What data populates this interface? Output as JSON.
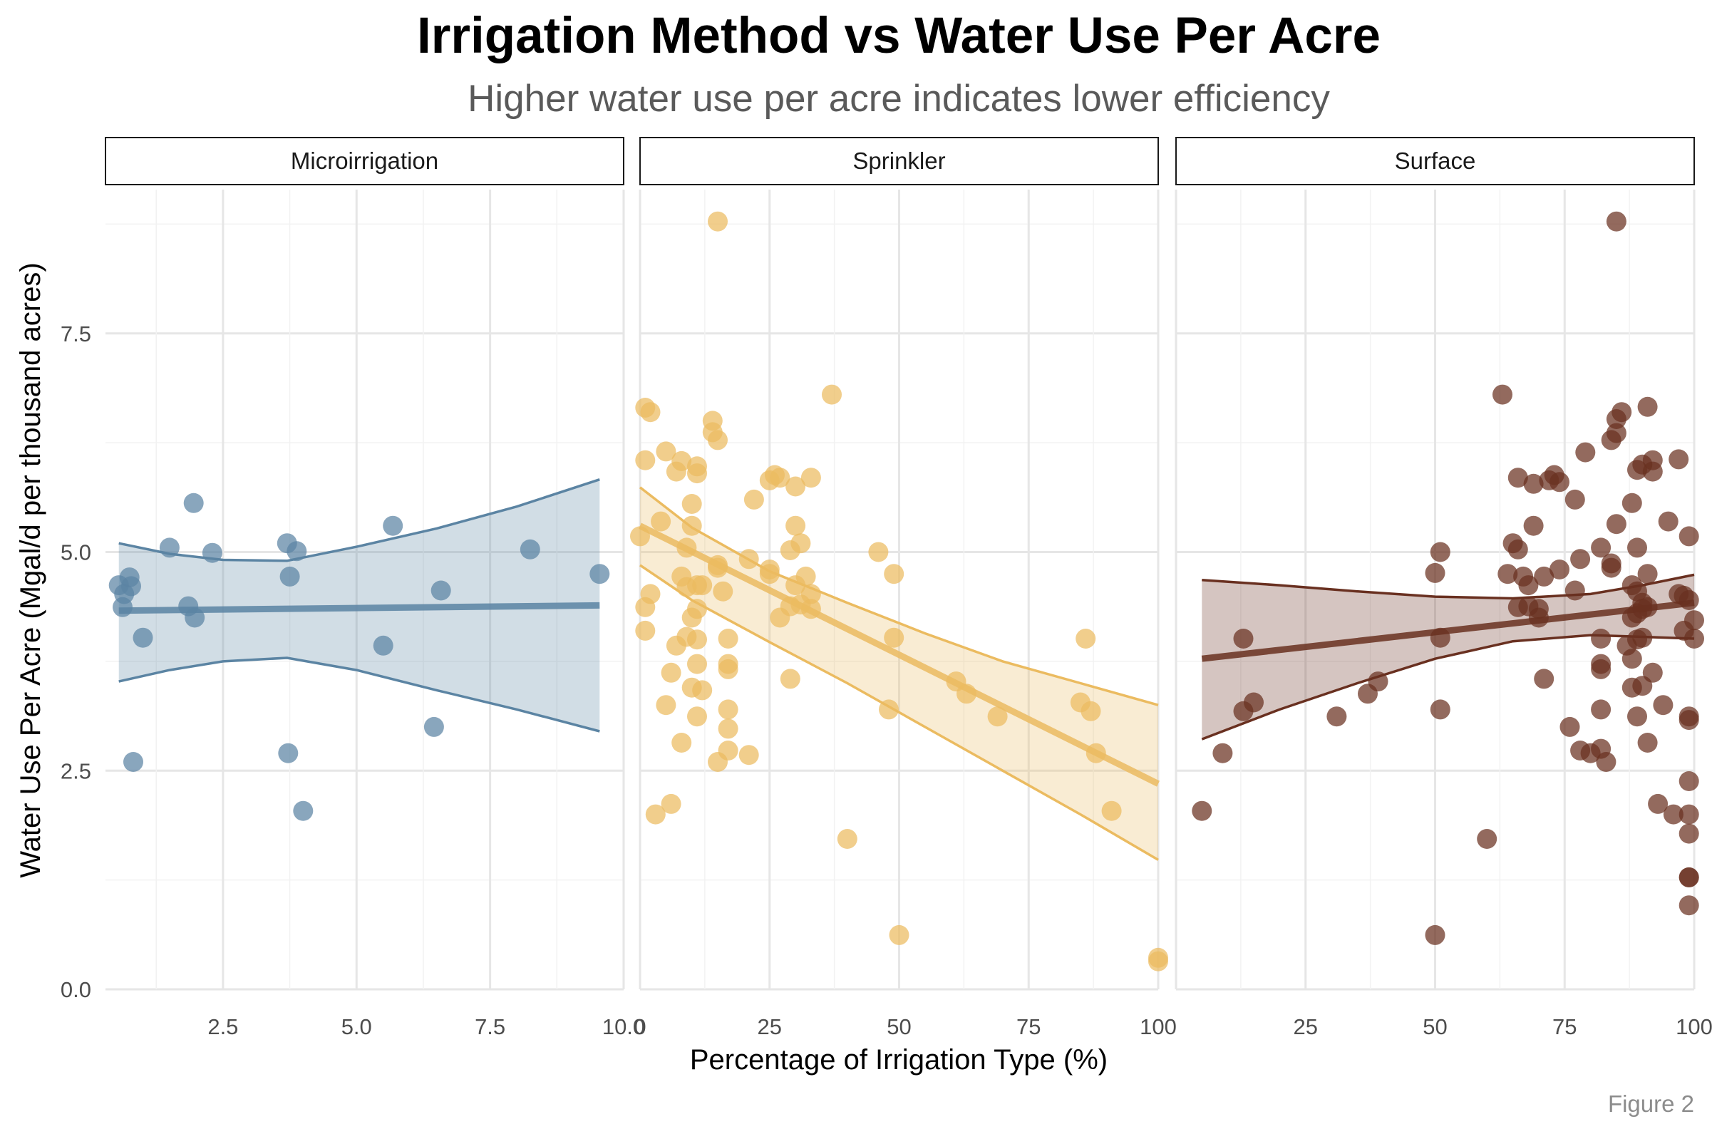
{
  "chart_data": {
    "type": "scatter",
    "title": "Irrigation Method vs Water Use Per Acre",
    "subtitle": "Higher water use per acre indicates lower efficiency",
    "xlabel": "Percentage of Irrigation Type (%)",
    "ylabel": "Water Use Per Acre (Mgal/d per thousand acres)",
    "caption": "Figure 2",
    "ylim": [
      0,
      9.0
    ],
    "y_ticks": [
      "0.0",
      "2.5",
      "5.0",
      "7.5"
    ],
    "y_tick_values": [
      0,
      2.5,
      5.0,
      7.5
    ],
    "grid": true,
    "panels": [
      {
        "name": "Microirrigation",
        "color": "#5b84a3",
        "xlim": [
          0.3,
          10.0
        ],
        "x_tick_labels": [
          "2.5",
          "5.0",
          "7.5",
          "10.0"
        ],
        "x_tick_values": [
          2.5,
          5.0,
          7.5,
          10.0
        ],
        "points": [
          [
            0.55,
            4.62
          ],
          [
            0.65,
            4.52
          ],
          [
            0.62,
            4.37
          ],
          [
            0.75,
            4.71
          ],
          [
            0.78,
            4.61
          ],
          [
            0.82,
            2.6
          ],
          [
            1.0,
            4.02
          ],
          [
            1.5,
            5.05
          ],
          [
            1.85,
            4.38
          ],
          [
            1.95,
            5.56
          ],
          [
            1.97,
            4.25
          ],
          [
            2.3,
            4.99
          ],
          [
            3.7,
            5.1
          ],
          [
            3.72,
            2.7
          ],
          [
            3.75,
            4.72
          ],
          [
            3.88,
            5.01
          ],
          [
            4.0,
            2.04
          ],
          [
            5.5,
            3.93
          ],
          [
            5.68,
            5.3
          ],
          [
            6.45,
            3.0
          ],
          [
            6.58,
            4.56
          ],
          [
            8.25,
            5.03
          ],
          [
            9.55,
            4.75
          ]
        ],
        "fit": {
          "x": [
            0.55,
            9.55
          ],
          "y": [
            4.33,
            4.39
          ]
        },
        "band": {
          "x": [
            0.55,
            1.5,
            2.5,
            3.7,
            5.0,
            6.5,
            8.0,
            9.55
          ],
          "lower": [
            3.52,
            3.65,
            3.75,
            3.79,
            3.65,
            3.42,
            3.2,
            2.95
          ],
          "upper": [
            5.1,
            4.98,
            4.91,
            4.9,
            5.06,
            5.27,
            5.52,
            5.83
          ]
        }
      },
      {
        "name": "Sprinkler",
        "color": "#ebbb60",
        "xlim": [
          0,
          100
        ],
        "x_tick_labels": [
          "0",
          "25",
          "50",
          "75",
          "100"
        ],
        "x_tick_values": [
          0,
          25,
          50,
          75,
          100
        ],
        "points": [
          [
            1,
            6.65
          ],
          [
            2,
            6.6
          ],
          [
            1,
            6.05
          ],
          [
            0,
            5.18
          ],
          [
            2,
            4.52
          ],
          [
            1,
            4.37
          ],
          [
            1,
            4.1
          ],
          [
            3,
            2.0
          ],
          [
            4,
            5.35
          ],
          [
            5,
            6.15
          ],
          [
            5,
            3.25
          ],
          [
            6,
            3.62
          ],
          [
            6,
            2.12
          ],
          [
            7,
            3.93
          ],
          [
            7,
            5.92
          ],
          [
            8,
            6.04
          ],
          [
            8,
            4.72
          ],
          [
            8,
            2.82
          ],
          [
            9,
            4.6
          ],
          [
            9,
            4.03
          ],
          [
            9,
            5.05
          ],
          [
            10,
            5.55
          ],
          [
            10,
            5.3
          ],
          [
            10,
            4.25
          ],
          [
            10,
            3.45
          ],
          [
            11,
            5.98
          ],
          [
            11,
            5.9
          ],
          [
            11,
            4.62
          ],
          [
            11,
            4.35
          ],
          [
            11,
            4.0
          ],
          [
            11,
            3.72
          ],
          [
            11,
            3.12
          ],
          [
            12,
            4.62
          ],
          [
            12,
            3.42
          ],
          [
            14,
            6.5
          ],
          [
            14,
            6.37
          ],
          [
            15,
            6.28
          ],
          [
            15,
            8.78
          ],
          [
            15,
            4.85
          ],
          [
            15,
            4.82
          ],
          [
            15,
            2.6
          ],
          [
            16,
            4.55
          ],
          [
            17,
            4.01
          ],
          [
            17,
            3.72
          ],
          [
            17,
            3.66
          ],
          [
            17,
            3.2
          ],
          [
            17,
            2.98
          ],
          [
            17,
            2.73
          ],
          [
            21,
            2.68
          ],
          [
            21,
            4.92
          ],
          [
            22,
            5.6
          ],
          [
            25,
            5.82
          ],
          [
            25,
            4.8
          ],
          [
            25,
            4.75
          ],
          [
            26,
            5.88
          ],
          [
            27,
            5.85
          ],
          [
            27,
            4.25
          ],
          [
            29,
            3.55
          ],
          [
            29,
            4.38
          ],
          [
            29,
            5.02
          ],
          [
            30,
            5.75
          ],
          [
            30,
            5.3
          ],
          [
            30,
            4.62
          ],
          [
            31,
            5.1
          ],
          [
            31,
            4.4
          ],
          [
            32,
            4.72
          ],
          [
            33,
            4.52
          ],
          [
            33,
            4.35
          ],
          [
            33,
            5.85
          ],
          [
            37,
            6.8
          ],
          [
            40,
            1.72
          ],
          [
            46,
            5.0
          ],
          [
            48,
            3.2
          ],
          [
            49,
            4.02
          ],
          [
            49,
            4.75
          ],
          [
            50,
            0.62
          ],
          [
            61,
            3.52
          ],
          [
            63,
            3.38
          ],
          [
            69,
            3.12
          ],
          [
            85,
            3.28
          ],
          [
            86,
            4.01
          ],
          [
            87,
            3.18
          ],
          [
            88,
            2.7
          ],
          [
            91,
            2.04
          ],
          [
            100,
            0.36
          ],
          [
            100,
            0.32
          ]
        ],
        "fit": {
          "x": [
            0,
            100
          ],
          "y": [
            5.3,
            2.35
          ]
        },
        "band": {
          "x": [
            0,
            10,
            25,
            40,
            55,
            70,
            85,
            100
          ],
          "lower": [
            4.85,
            4.45,
            3.97,
            3.5,
            3.0,
            2.5,
            2.0,
            1.48
          ],
          "upper": [
            5.74,
            5.28,
            4.78,
            4.42,
            4.07,
            3.75,
            3.5,
            3.25
          ]
        }
      },
      {
        "name": "Surface",
        "color": "#693020",
        "xlim": [
          0,
          100
        ],
        "x_tick_labels": [
          "25",
          "50",
          "75",
          "100"
        ],
        "x_tick_values": [
          25,
          50,
          75,
          100
        ],
        "points": [
          [
            5,
            2.04
          ],
          [
            9,
            2.7
          ],
          [
            13,
            4.01
          ],
          [
            13,
            3.18
          ],
          [
            15,
            3.28
          ],
          [
            31,
            3.12
          ],
          [
            37,
            3.38
          ],
          [
            39,
            3.52
          ],
          [
            50,
            0.62
          ],
          [
            50,
            4.76
          ],
          [
            51,
            5.0
          ],
          [
            51,
            4.02
          ],
          [
            51,
            3.2
          ],
          [
            60,
            1.72
          ],
          [
            63,
            6.8
          ],
          [
            64,
            4.75
          ],
          [
            65,
            5.1
          ],
          [
            66,
            5.85
          ],
          [
            66,
            4.37
          ],
          [
            66,
            5.03
          ],
          [
            67,
            4.72
          ],
          [
            68,
            4.62
          ],
          [
            68,
            4.38
          ],
          [
            69,
            5.3
          ],
          [
            69,
            5.78
          ],
          [
            70,
            4.35
          ],
          [
            70,
            4.25
          ],
          [
            71,
            3.55
          ],
          [
            71,
            4.72
          ],
          [
            72,
            5.82
          ],
          [
            73,
            5.88
          ],
          [
            74,
            5.8
          ],
          [
            74,
            4.8
          ],
          [
            76,
            3.0
          ],
          [
            77,
            5.6
          ],
          [
            77,
            4.56
          ],
          [
            78,
            2.73
          ],
          [
            78,
            4.92
          ],
          [
            79,
            6.14
          ],
          [
            80,
            2.7
          ],
          [
            82,
            5.05
          ],
          [
            82,
            4.01
          ],
          [
            82,
            3.2
          ],
          [
            82,
            3.72
          ],
          [
            82,
            3.66
          ],
          [
            82,
            2.75
          ],
          [
            83,
            2.6
          ],
          [
            84,
            6.28
          ],
          [
            84,
            4.82
          ],
          [
            84,
            4.87
          ],
          [
            85,
            8.78
          ],
          [
            85,
            6.36
          ],
          [
            85,
            6.52
          ],
          [
            85,
            5.32
          ],
          [
            86,
            6.6
          ],
          [
            87,
            3.93
          ],
          [
            88,
            5.56
          ],
          [
            88,
            4.62
          ],
          [
            88,
            3.78
          ],
          [
            88,
            3.45
          ],
          [
            88,
            4.25
          ],
          [
            89,
            5.94
          ],
          [
            89,
            5.05
          ],
          [
            89,
            4.55
          ],
          [
            89,
            4.3
          ],
          [
            89,
            4.0
          ],
          [
            89,
            3.12
          ],
          [
            90,
            6.0
          ],
          [
            90,
            4.42
          ],
          [
            90,
            4.35
          ],
          [
            90,
            4.02
          ],
          [
            90,
            3.47
          ],
          [
            91,
            6.66
          ],
          [
            91,
            4.75
          ],
          [
            91,
            4.37
          ],
          [
            91,
            2.82
          ],
          [
            92,
            6.05
          ],
          [
            92,
            5.92
          ],
          [
            92,
            3.62
          ],
          [
            93,
            2.12
          ],
          [
            94,
            3.25
          ],
          [
            95,
            5.35
          ],
          [
            96,
            2.0
          ],
          [
            97,
            4.52
          ],
          [
            97,
            6.06
          ],
          [
            98,
            4.1
          ],
          [
            98,
            4.5
          ],
          [
            99,
            5.18
          ],
          [
            99,
            4.45
          ],
          [
            99,
            2.38
          ],
          [
            99,
            2.0
          ],
          [
            99,
            1.78
          ],
          [
            99,
            1.28
          ],
          [
            99,
            1.28
          ],
          [
            99,
            0.96
          ],
          [
            99,
            3.12
          ],
          [
            99,
            3.08
          ],
          [
            100,
            4.22
          ],
          [
            100,
            4.01
          ]
        ],
        "fit": {
          "x": [
            5,
            100
          ],
          "y": [
            3.78,
            4.42
          ]
        },
        "band": {
          "x": [
            5,
            20,
            35,
            50,
            65,
            80,
            90,
            100
          ],
          "lower": [
            2.86,
            3.2,
            3.5,
            3.78,
            3.98,
            4.05,
            4.03,
            4.01
          ],
          "upper": [
            4.68,
            4.62,
            4.55,
            4.49,
            4.47,
            4.52,
            4.62,
            4.74
          ]
        }
      }
    ]
  }
}
